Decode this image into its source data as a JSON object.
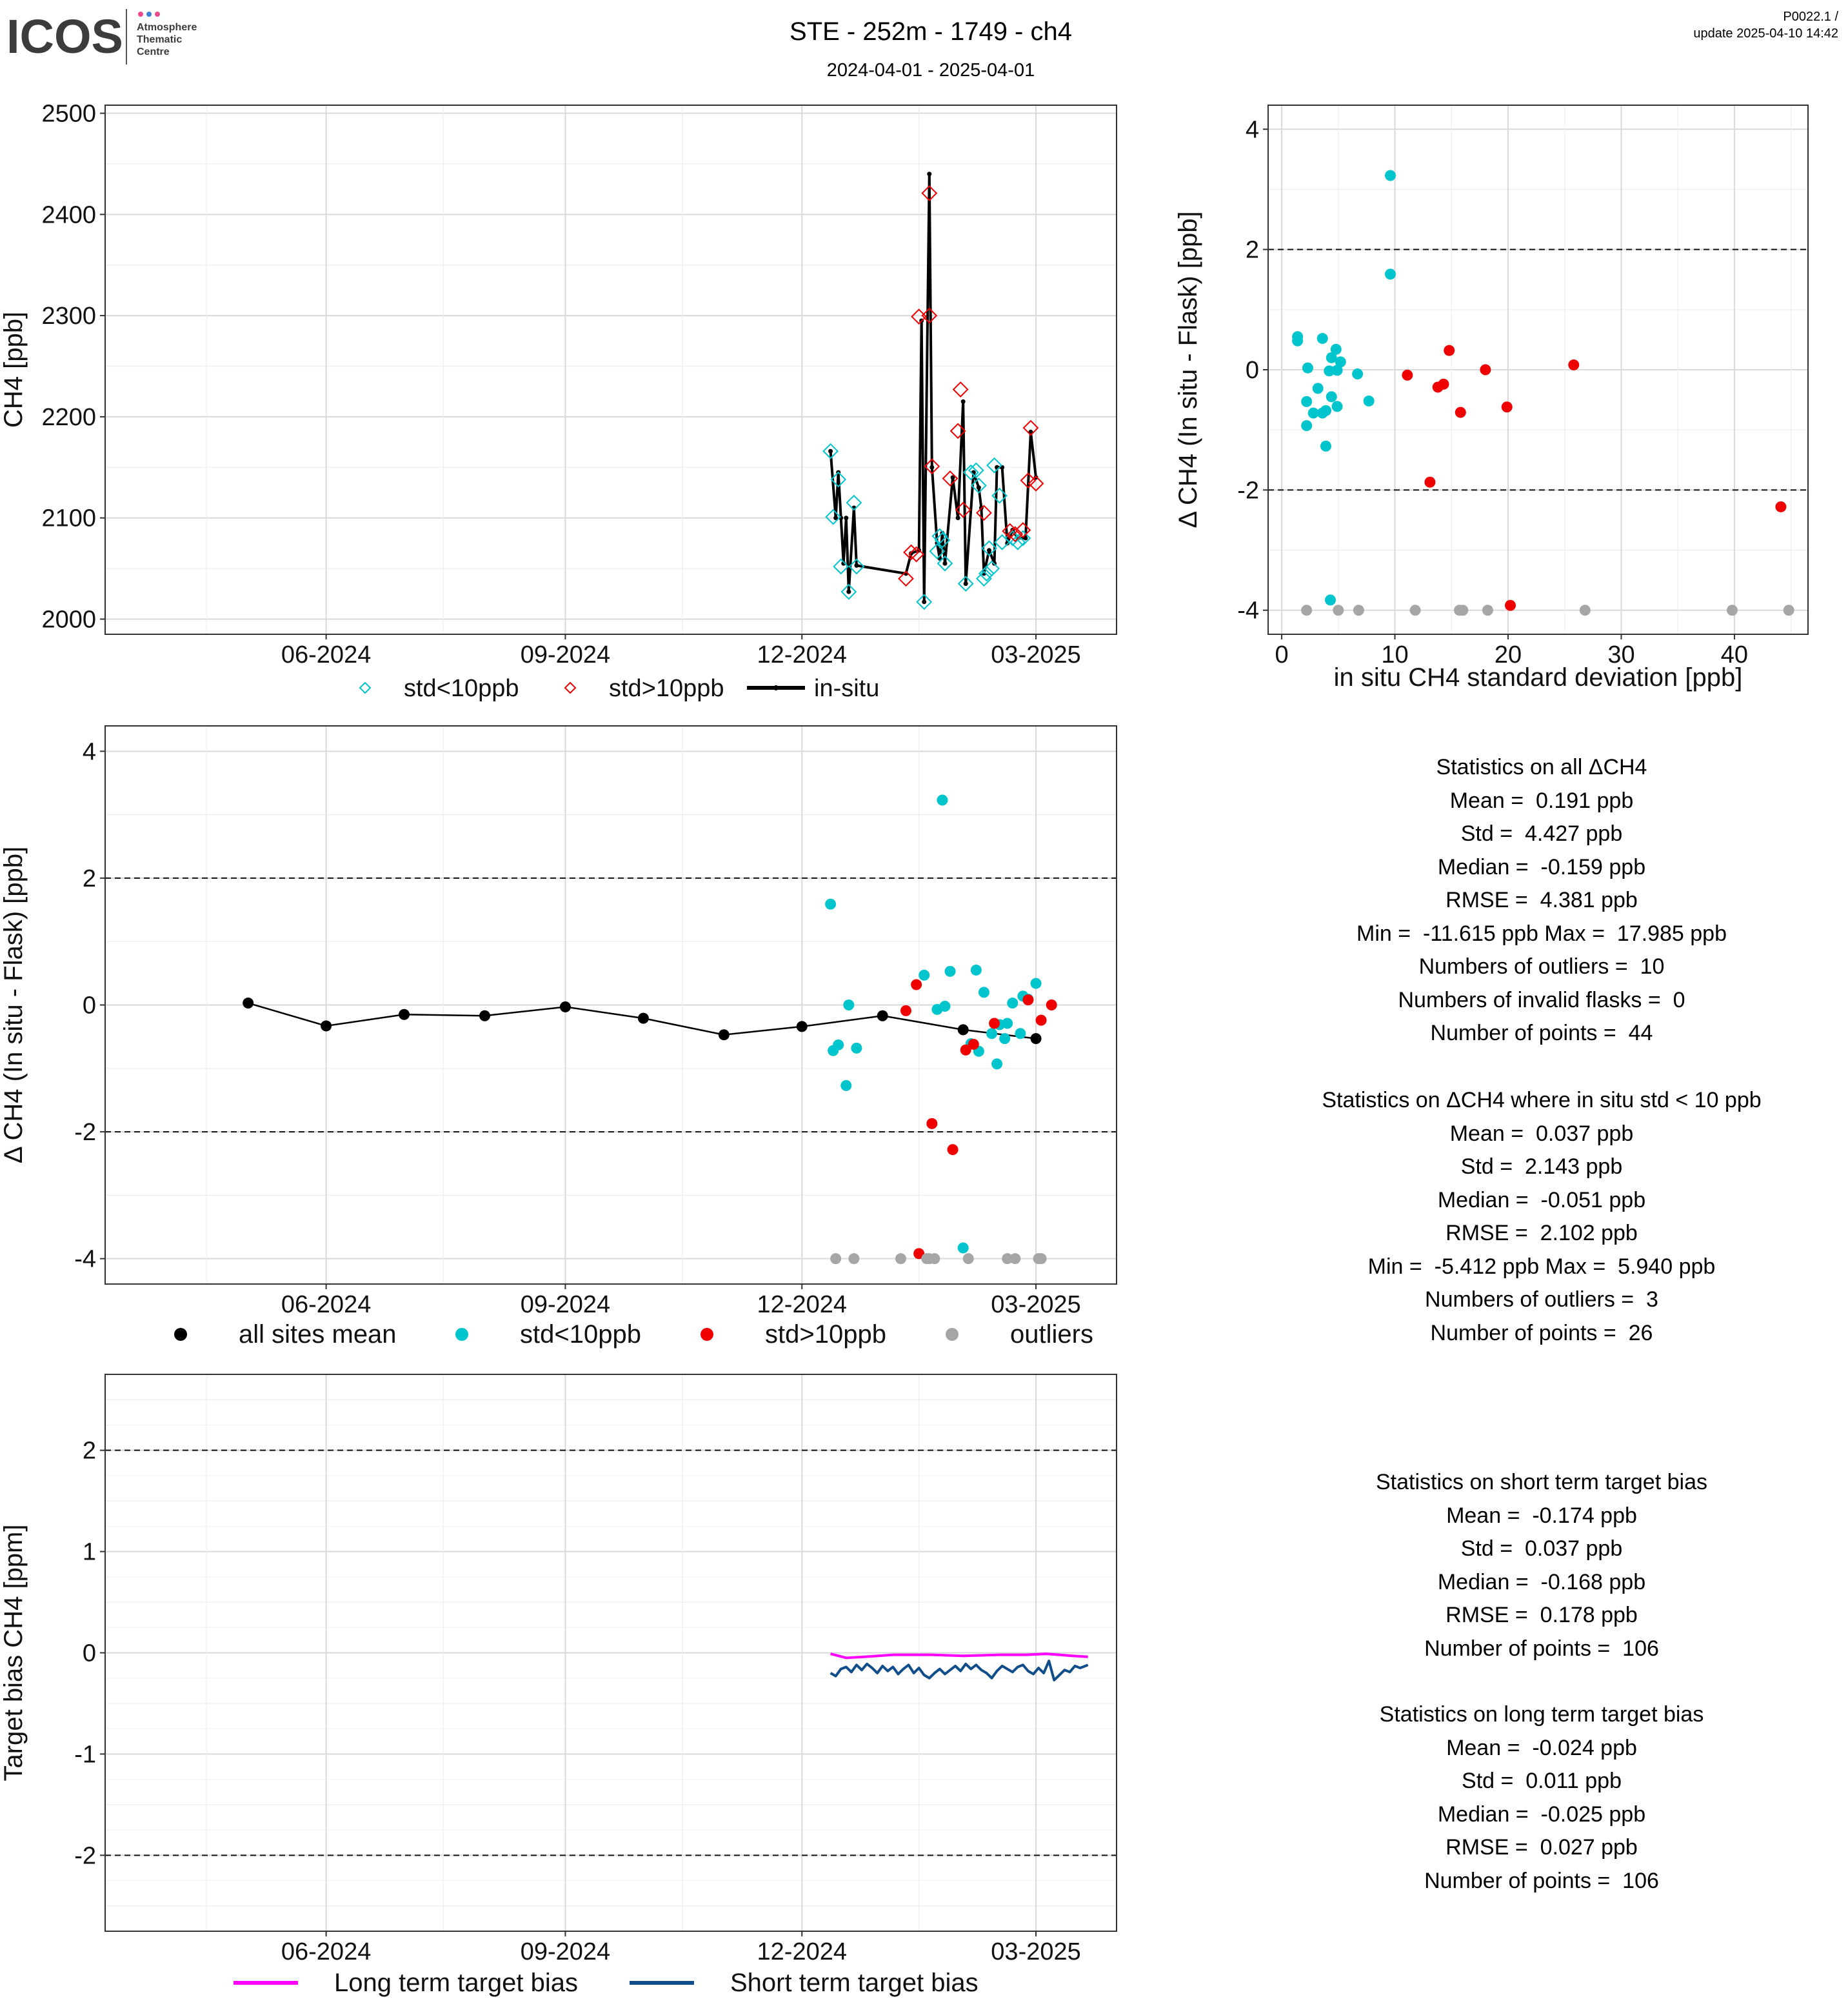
{
  "header": {
    "logo_text": "ICOS",
    "logo_sub": [
      "Atmosphere",
      "Thematic",
      "Centre"
    ],
    "title": "STE - 252m - 1749 - ch4",
    "date_range": "2024-04-01 - 2025-04-01",
    "version": "P0022.1 /",
    "update": "update  2025-04-10 14:42"
  },
  "colors": {
    "std_lt10": "#00c5cd",
    "std_gt10": "#ee0000",
    "outlier": "#a6a6a6",
    "mean": "#000000",
    "long_term": "#ff00ff",
    "short_term": "#104e8b"
  },
  "chart_data": [
    {
      "id": "timeseries",
      "type": "line",
      "ylabel": "CH4 [ppb]",
      "ylim": [
        1985,
        2508
      ],
      "yticks": [
        2000,
        2100,
        2200,
        2300,
        2400,
        2500
      ],
      "x_tick_labels": [
        "06-2024",
        "09-2024",
        "12-2024",
        "03-2025"
      ],
      "x_ticks": [
        "2024-06-01",
        "2024-09-01",
        "2024-12-01",
        "2025-03-01"
      ],
      "xlim": [
        "2024-03-08",
        "2025-04-01"
      ],
      "legend": [
        "std<10ppb",
        "std>10ppb",
        "in-situ"
      ],
      "insitu": [
        [
          "2024-12-12",
          2166
        ],
        [
          "2024-12-14",
          2100
        ],
        [
          "2024-12-15",
          2145
        ],
        [
          "2024-12-16",
          2100
        ],
        [
          "2024-12-17",
          2055
        ],
        [
          "2024-12-18",
          2100
        ],
        [
          "2024-12-19",
          2027
        ],
        [
          "2024-12-21",
          2110
        ],
        [
          "2024-12-22",
          2053
        ],
        [
          "2025-01-10",
          2045
        ],
        [
          "2025-01-12",
          2065
        ],
        [
          "2025-01-15",
          2068
        ],
        [
          "2025-01-16",
          2295
        ],
        [
          "2025-01-17",
          2017
        ],
        [
          "2025-01-19",
          2440
        ],
        [
          "2025-01-20",
          2150
        ],
        [
          "2025-01-22",
          2075
        ],
        [
          "2025-01-23",
          2060
        ],
        [
          "2025-01-24",
          2085
        ],
        [
          "2025-01-25",
          2055
        ],
        [
          "2025-01-28",
          2140
        ],
        [
          "2025-01-30",
          2100
        ],
        [
          "2025-02-01",
          2215
        ],
        [
          "2025-02-02",
          2035
        ],
        [
          "2025-02-05",
          2145
        ],
        [
          "2025-02-07",
          2130
        ],
        [
          "2025-02-08",
          2110
        ],
        [
          "2025-02-09",
          2045
        ],
        [
          "2025-02-11",
          2068
        ],
        [
          "2025-02-13",
          2055
        ],
        [
          "2025-02-14",
          2150
        ],
        [
          "2025-02-16",
          2150
        ],
        [
          "2025-02-18",
          2075
        ],
        [
          "2025-02-20",
          2088
        ],
        [
          "2025-02-22",
          2080
        ],
        [
          "2025-02-25",
          2080
        ],
        [
          "2025-02-27",
          2185
        ],
        [
          "2025-03-01",
          2140
        ]
      ],
      "flask_lt10": [
        [
          "2024-12-12",
          2166
        ],
        [
          "2024-12-13",
          2101
        ],
        [
          "2024-12-15",
          2138
        ],
        [
          "2024-12-16",
          2052
        ],
        [
          "2024-12-19",
          2027
        ],
        [
          "2024-12-21",
          2115
        ],
        [
          "2024-12-22",
          2052
        ],
        [
          "2025-01-17",
          2017
        ],
        [
          "2025-01-22",
          2067
        ],
        [
          "2025-01-23",
          2082
        ],
        [
          "2025-01-24",
          2078
        ],
        [
          "2025-01-25",
          2055
        ],
        [
          "2025-02-02",
          2035
        ],
        [
          "2025-02-04",
          2145
        ],
        [
          "2025-02-06",
          2147
        ],
        [
          "2025-02-07",
          2132
        ],
        [
          "2025-02-09",
          2040
        ],
        [
          "2025-02-10",
          2045
        ],
        [
          "2025-02-11",
          2070
        ],
        [
          "2025-02-12",
          2050
        ],
        [
          "2025-02-13",
          2152
        ],
        [
          "2025-02-15",
          2122
        ],
        [
          "2025-02-16",
          2076
        ],
        [
          "2025-02-20",
          2080
        ],
        [
          "2025-02-22",
          2076
        ],
        [
          "2025-02-24",
          2080
        ]
      ],
      "flask_gt10": [
        [
          "2025-01-10",
          2040
        ],
        [
          "2025-01-12",
          2066
        ],
        [
          "2025-01-14",
          2064
        ],
        [
          "2025-01-15",
          2299
        ],
        [
          "2025-01-19",
          2421
        ],
        [
          "2025-01-19",
          2300
        ],
        [
          "2025-01-20",
          2151
        ],
        [
          "2025-01-27",
          2139
        ],
        [
          "2025-01-30",
          2186
        ],
        [
          "2025-01-31",
          2227
        ],
        [
          "2025-02-01",
          2108
        ],
        [
          "2025-02-09",
          2105
        ],
        [
          "2025-02-19",
          2087
        ],
        [
          "2025-02-21",
          2084
        ],
        [
          "2025-02-24",
          2088
        ],
        [
          "2025-02-26",
          2137
        ],
        [
          "2025-02-27",
          2189
        ],
        [
          "2025-03-01",
          2134
        ]
      ]
    },
    {
      "id": "delta_vs_std",
      "type": "scatter",
      "xlabel": "in situ CH4 standard deviation [ppb]",
      "ylabel": "Δ CH4 (In situ - Flask) [ppb]",
      "xlim": [
        -1.2,
        46.5
      ],
      "ylim": [
        -4.4,
        4.4
      ],
      "xticks": [
        0,
        10,
        20,
        30,
        40
      ],
      "yticks": [
        -4,
        -2,
        0,
        2,
        4
      ],
      "hlines": [
        2,
        -2
      ],
      "points_lt10": [
        [
          1.4,
          0.55
        ],
        [
          1.4,
          0.48
        ],
        [
          2.3,
          0.03
        ],
        [
          2.2,
          -0.53
        ],
        [
          2.2,
          -0.93
        ],
        [
          2.8,
          -0.72
        ],
        [
          3.2,
          -0.31
        ],
        [
          3.6,
          0.52
        ],
        [
          3.6,
          -0.72
        ],
        [
          3.9,
          -0.68
        ],
        [
          3.9,
          -1.27
        ],
        [
          4.2,
          -0.02
        ],
        [
          4.4,
          0.2
        ],
        [
          4.4,
          -0.45
        ],
        [
          4.8,
          0.34
        ],
        [
          4.9,
          -0.61
        ],
        [
          4.9,
          -0.01
        ],
        [
          5.2,
          0.13
        ],
        [
          6.7,
          -0.07
        ],
        [
          7.7,
          -0.52
        ],
        [
          9.6,
          3.23
        ],
        [
          9.6,
          1.59
        ],
        [
          4.3,
          -3.83
        ]
      ],
      "points_gt10": [
        [
          11.1,
          -0.09
        ],
        [
          13.1,
          -1.87
        ],
        [
          13.8,
          -0.29
        ],
        [
          14.3,
          -0.24
        ],
        [
          14.8,
          0.32
        ],
        [
          15.8,
          -0.71
        ],
        [
          18.0,
          0.0
        ],
        [
          19.9,
          -0.62
        ],
        [
          25.8,
          0.08
        ],
        [
          44.1,
          -2.28
        ],
        [
          20.2,
          -3.92
        ]
      ],
      "outliers": [
        [
          2.2,
          -4.0
        ],
        [
          5.0,
          -4.0
        ],
        [
          6.8,
          -4.0
        ],
        [
          11.8,
          -4.0
        ],
        [
          15.7,
          -4.0
        ],
        [
          16.0,
          -4.0
        ],
        [
          18.2,
          -4.0
        ],
        [
          26.8,
          -4.0
        ],
        [
          39.8,
          -4.0
        ],
        [
          44.8,
          -4.0
        ]
      ]
    },
    {
      "id": "delta_timeseries",
      "type": "scatter",
      "ylabel": "Δ CH4 (In situ - Flask) [ppb]",
      "ylim": [
        -4.4,
        4.4
      ],
      "yticks": [
        -4,
        -2,
        0,
        2,
        4
      ],
      "hlines": [
        2,
        -2
      ],
      "x_tick_labels": [
        "06-2024",
        "09-2024",
        "12-2024",
        "03-2025"
      ],
      "x_ticks": [
        "2024-06-01",
        "2024-09-01",
        "2024-12-01",
        "2025-03-01"
      ],
      "xlim": [
        "2024-03-08",
        "2025-04-01"
      ],
      "legend": [
        "all sites mean",
        "std<10ppb",
        "std>10ppb",
        "outliers"
      ],
      "mean": [
        [
          "2024-05-02",
          0.03
        ],
        [
          "2024-06-01",
          -0.33
        ],
        [
          "2024-07-01",
          -0.15
        ],
        [
          "2024-08-01",
          -0.17
        ],
        [
          "2024-09-01",
          -0.03
        ],
        [
          "2024-10-01",
          -0.21
        ],
        [
          "2024-11-01",
          -0.47
        ],
        [
          "2024-12-01",
          -0.34
        ],
        [
          "2025-01-01",
          -0.17
        ],
        [
          "2025-02-01",
          -0.39
        ],
        [
          "2025-03-01",
          -0.53
        ]
      ],
      "points_lt10": [
        [
          "2024-12-12",
          1.59
        ],
        [
          "2024-12-13",
          -0.72
        ],
        [
          "2024-12-15",
          -0.63
        ],
        [
          "2024-12-18",
          -1.27
        ],
        [
          "2024-12-19",
          0.0
        ],
        [
          "2024-12-22",
          -0.68
        ],
        [
          "2025-01-17",
          0.47
        ],
        [
          "2025-01-22",
          -0.07
        ],
        [
          "2025-01-24",
          3.23
        ],
        [
          "2025-01-25",
          -0.02
        ],
        [
          "2025-01-27",
          0.53
        ],
        [
          "2025-02-01",
          -3.83
        ],
        [
          "2025-02-04",
          -0.61
        ],
        [
          "2025-02-06",
          0.55
        ],
        [
          "2025-02-07",
          -0.73
        ],
        [
          "2025-02-09",
          0.2
        ],
        [
          "2025-02-12",
          -0.45
        ],
        [
          "2025-02-14",
          -0.93
        ],
        [
          "2025-02-15",
          -0.31
        ],
        [
          "2025-02-17",
          -0.53
        ],
        [
          "2025-02-18",
          -0.29
        ],
        [
          "2025-02-20",
          0.03
        ],
        [
          "2025-02-23",
          -0.45
        ],
        [
          "2025-02-24",
          0.14
        ],
        [
          "2025-03-01",
          0.34
        ],
        [
          "2025-02-26",
          0.09
        ]
      ],
      "points_gt10": [
        [
          "2025-01-10",
          -0.09
        ],
        [
          "2025-01-14",
          0.32
        ],
        [
          "2025-01-15",
          -3.92
        ],
        [
          "2025-01-20",
          -1.87
        ],
        [
          "2025-01-28",
          -2.28
        ],
        [
          "2025-02-02",
          -0.71
        ],
        [
          "2025-02-05",
          -0.62
        ],
        [
          "2025-02-13",
          -0.29
        ],
        [
          "2025-02-26",
          0.08
        ],
        [
          "2025-03-03",
          -0.24
        ],
        [
          "2025-03-07",
          0.0
        ]
      ],
      "outliers": [
        [
          "2024-12-14",
          -4.0
        ],
        [
          "2024-12-21",
          -4.0
        ],
        [
          "2025-01-08",
          -4.0
        ],
        [
          "2025-01-18",
          -4.0
        ],
        [
          "2025-01-19",
          -4.0
        ],
        [
          "2025-01-21",
          -4.0
        ],
        [
          "2025-02-03",
          -4.0
        ],
        [
          "2025-02-18",
          -4.0
        ],
        [
          "2025-02-21",
          -4.0
        ],
        [
          "2025-03-02",
          -4.0
        ],
        [
          "2025-03-03",
          -4.0
        ]
      ]
    },
    {
      "id": "target_bias",
      "type": "line",
      "ylabel": "Target bias CH4 [ppm]",
      "ylim": [
        -2.75,
        2.75
      ],
      "yticks": [
        -2,
        -1,
        0,
        1,
        2
      ],
      "hlines": [
        2,
        -2
      ],
      "x_tick_labels": [
        "06-2024",
        "09-2024",
        "12-2024",
        "03-2025"
      ],
      "x_ticks": [
        "2024-06-01",
        "2024-09-01",
        "2024-12-01",
        "2025-03-01"
      ],
      "xlim": [
        "2024-03-08",
        "2025-04-01"
      ],
      "legend": [
        "Long term target bias",
        "Short term target bias"
      ],
      "long_term": [
        [
          "2024-12-12",
          -0.01
        ],
        [
          "2024-12-15",
          -0.03
        ],
        [
          "2024-12-18",
          -0.05
        ],
        [
          "2024-12-25",
          -0.04
        ],
        [
          "2025-01-05",
          -0.02
        ],
        [
          "2025-01-20",
          -0.02
        ],
        [
          "2025-02-01",
          -0.03
        ],
        [
          "2025-02-15",
          -0.02
        ],
        [
          "2025-02-25",
          -0.02
        ],
        [
          "2025-03-05",
          -0.01
        ],
        [
          "2025-03-10",
          -0.02
        ],
        [
          "2025-03-15",
          -0.03
        ],
        [
          "2025-03-21",
          -0.04
        ]
      ],
      "short_term": [
        [
          "2024-12-12",
          -0.2
        ],
        [
          "2024-12-14",
          -0.23
        ],
        [
          "2024-12-16",
          -0.16
        ],
        [
          "2024-12-18",
          -0.14
        ],
        [
          "2024-12-20",
          -0.19
        ],
        [
          "2024-12-22",
          -0.12
        ],
        [
          "2024-12-24",
          -0.17
        ],
        [
          "2024-12-26",
          -0.11
        ],
        [
          "2024-12-28",
          -0.15
        ],
        [
          "2024-12-30",
          -0.2
        ],
        [
          "2025-01-01",
          -0.13
        ],
        [
          "2025-01-03",
          -0.18
        ],
        [
          "2025-01-05",
          -0.14
        ],
        [
          "2025-01-07",
          -0.21
        ],
        [
          "2025-01-09",
          -0.16
        ],
        [
          "2025-01-11",
          -0.12
        ],
        [
          "2025-01-13",
          -0.2
        ],
        [
          "2025-01-15",
          -0.15
        ],
        [
          "2025-01-17",
          -0.22
        ],
        [
          "2025-01-19",
          -0.25
        ],
        [
          "2025-01-21",
          -0.2
        ],
        [
          "2025-01-23",
          -0.16
        ],
        [
          "2025-01-25",
          -0.21
        ],
        [
          "2025-01-27",
          -0.17
        ],
        [
          "2025-01-29",
          -0.13
        ],
        [
          "2025-01-31",
          -0.18
        ],
        [
          "2025-02-02",
          -0.11
        ],
        [
          "2025-02-04",
          -0.16
        ],
        [
          "2025-02-06",
          -0.12
        ],
        [
          "2025-02-08",
          -0.17
        ],
        [
          "2025-02-10",
          -0.2
        ],
        [
          "2025-02-12",
          -0.25
        ],
        [
          "2025-02-14",
          -0.18
        ],
        [
          "2025-02-16",
          -0.13
        ],
        [
          "2025-02-18",
          -0.16
        ],
        [
          "2025-02-20",
          -0.19
        ],
        [
          "2025-02-22",
          -0.14
        ],
        [
          "2025-02-24",
          -0.12
        ],
        [
          "2025-02-26",
          -0.18
        ],
        [
          "2025-02-28",
          -0.21
        ],
        [
          "2025-03-02",
          -0.15
        ],
        [
          "2025-03-04",
          -0.2
        ],
        [
          "2025-03-06",
          -0.08
        ],
        [
          "2025-03-08",
          -0.27
        ],
        [
          "2025-03-10",
          -0.22
        ],
        [
          "2025-03-12",
          -0.17
        ],
        [
          "2025-03-14",
          -0.19
        ],
        [
          "2025-03-16",
          -0.13
        ],
        [
          "2025-03-18",
          -0.15
        ],
        [
          "2025-03-21",
          -0.12
        ]
      ]
    }
  ],
  "stats_all": {
    "title": "Statistics on all ΔCH4",
    "lines": [
      "Mean =  0.191 ppb",
      "Std =  4.427 ppb",
      "Median =  -0.159 ppb",
      "RMSE =  4.381 ppb",
      "Min =  -11.615 ppb Max =  17.985 ppb",
      "Numbers of outliers =  10",
      "Numbers of invalid flasks =  0",
      "Number of points =  44"
    ]
  },
  "stats_std10": {
    "title": "Statistics on ΔCH4 where in situ std < 10 ppb",
    "lines": [
      "Mean =  0.037 ppb",
      "Std =  2.143 ppb",
      "Median =  -0.051 ppb",
      "RMSE =  2.102 ppb",
      "Min =  -5.412 ppb Max =  5.940 ppb",
      "Numbers of outliers =  3",
      "Number of points =  26"
    ]
  },
  "stats_short": {
    "title": "Statistics on short term target bias",
    "lines": [
      "Mean =  -0.174 ppb",
      "Std =  0.037 ppb",
      "Median =  -0.168 ppb",
      "RMSE =  0.178 ppb",
      "Number of points =  106"
    ]
  },
  "stats_long": {
    "title": "Statistics on long term target bias",
    "lines": [
      "Mean =  -0.024 ppb",
      "Std =  0.011 ppb",
      "Median =  -0.025 ppb",
      "RMSE =  0.027 ppb",
      "Number of points =  106"
    ]
  }
}
